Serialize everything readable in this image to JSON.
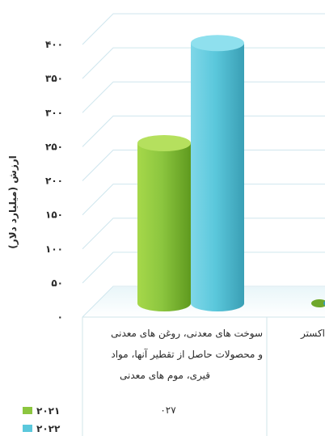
{
  "chart_data": {
    "type": "bar",
    "title": "",
    "ylabel": "ارزش (میلیارد دلار)",
    "ylim": [
      0,
      400
    ],
    "yticks": [
      "۰",
      "۵۰",
      "۱۰۰",
      "۱۵۰",
      "۲۰۰",
      "۲۵۰",
      "۳۰۰",
      "۳۵۰",
      "۴۰۰"
    ],
    "categories": [
      {
        "code": "۰۲۷",
        "lines": [
          "سوخت های معدنی، روغن های معدنی",
          "و محصولات حاصل از تقطیر آنها، مواد",
          "قیری، موم های معدنی"
        ]
      },
      {
        "code": "",
        "lines": [
          "اکستر"
        ]
      }
    ],
    "series": [
      {
        "name": "۲۰۲۱",
        "color": "#8cc63f",
        "values": [
          240,
          null
        ]
      },
      {
        "name": "۲۰۲۲",
        "color": "#5bc8dc",
        "values": [
          390,
          null
        ]
      }
    ],
    "grid": true,
    "legend": "bottom-left"
  }
}
